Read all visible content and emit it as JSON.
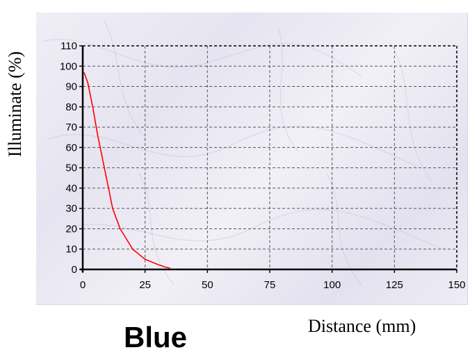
{
  "caption": "Blue",
  "chart_data": {
    "type": "line",
    "title": "",
    "xlabel": "Distance (mm)",
    "ylabel": "Illuminate (%)",
    "xlim": [
      0,
      150
    ],
    "ylim": [
      0,
      110
    ],
    "xticks": [
      0,
      25,
      50,
      75,
      100,
      125,
      150
    ],
    "yticks": [
      0,
      10,
      20,
      30,
      40,
      50,
      60,
      70,
      80,
      90,
      100,
      110
    ],
    "grid": true,
    "series": [
      {
        "color": "#ff0000",
        "x": [
          0.5,
          2,
          4,
          6,
          8,
          10,
          12,
          15,
          18,
          20,
          25,
          30,
          33,
          35
        ],
        "y": [
          97,
          92,
          80,
          66,
          54,
          42,
          30,
          20,
          14,
          10,
          5,
          2.5,
          1.2,
          0.6
        ]
      }
    ]
  }
}
